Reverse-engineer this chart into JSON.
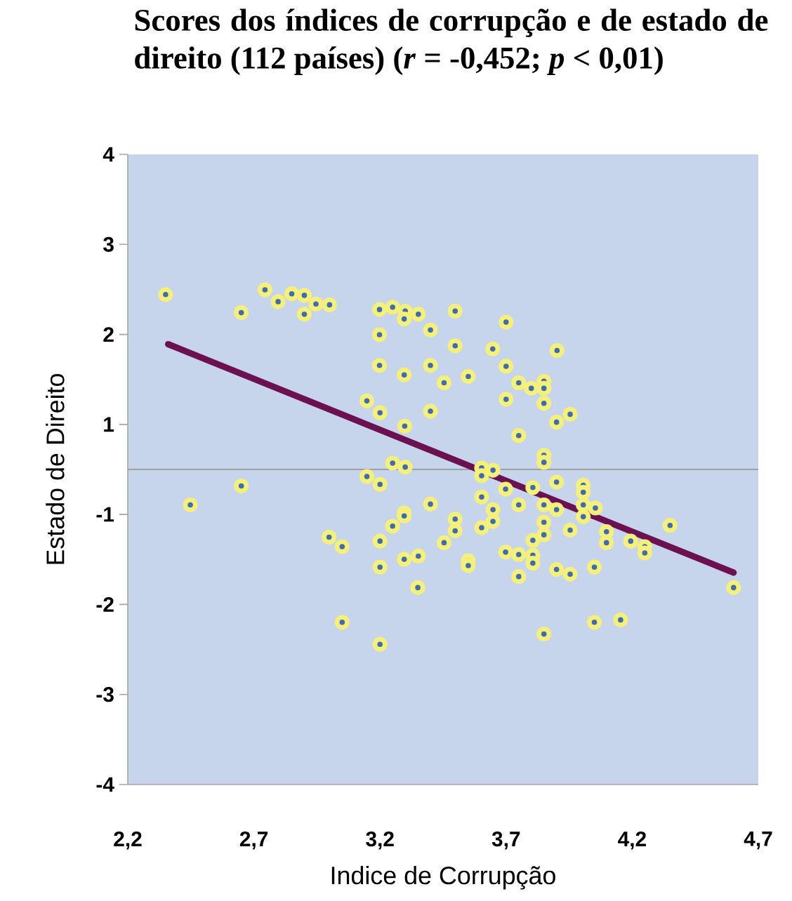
{
  "chart_data": {
    "type": "scatter",
    "title": "Scores dos índices de corrupção e de estado de direito (112 países) (*r* = -0,452; *p* < 0,01)",
    "xlabel": "Indice de Corrupção",
    "ylabel": "Estado de Direito",
    "xlim": [
      2.2,
      4.7
    ],
    "xticks": [
      {
        "value": 2.2,
        "label": "2,2"
      },
      {
        "value": 2.7,
        "label": "2,7"
      },
      {
        "value": 3.2,
        "label": "3,2"
      },
      {
        "value": 3.7,
        "label": "3,7"
      },
      {
        "value": 4.2,
        "label": "4,2"
      },
      {
        "value": 4.7,
        "label": "4,7"
      }
    ],
    "ylim": [
      -4,
      4
    ],
    "yticks": [
      {
        "value": 4,
        "label": "4"
      },
      {
        "value": 2.857,
        "label": "3"
      },
      {
        "value": 1.714,
        "label": "2"
      },
      {
        "value": 0.571,
        "label": "1"
      },
      {
        "value": -0.571,
        "label": "-1"
      },
      {
        "value": -1.714,
        "label": "-2"
      },
      {
        "value": -2.857,
        "label": "-3"
      },
      {
        "value": -4,
        "label": "-4"
      }
    ],
    "marker": "circle",
    "ref_lines": [
      {
        "axis": "y",
        "value": 0,
        "color": "#a0a0a0"
      }
    ],
    "series": [
      {
        "color": "#3d6db0",
        "x": [
          2.35,
          2.65,
          2.744,
          2.796,
          2.85,
          2.9,
          2.946,
          3.0,
          2.9,
          2.448,
          2.65,
          2.998,
          3.05,
          3.05,
          3.198,
          3.25,
          3.3,
          3.296,
          3.352,
          3.498,
          3.198,
          3.4,
          3.498,
          3.647,
          3.198,
          3.296,
          3.4,
          3.454,
          3.55,
          3.148,
          3.2,
          3.4,
          3.298,
          3.25,
          3.3,
          3.148,
          3.2,
          3.603,
          3.603,
          3.603,
          3.4,
          3.296,
          3.296,
          3.25,
          3.498,
          3.498,
          3.603,
          3.648,
          3.648,
          3.2,
          3.454,
          3.296,
          3.352,
          3.55,
          3.55,
          3.2,
          3.35,
          3.2,
          3.7,
          3.902,
          3.7,
          3.75,
          3.8,
          3.85,
          3.85,
          3.85,
          3.954,
          3.9,
          3.7,
          3.75,
          3.85,
          3.85,
          3.648,
          3.9,
          4.006,
          4.006,
          3.806,
          3.698,
          3.75,
          3.85,
          3.9,
          4.006,
          4.054,
          4.006,
          3.85,
          3.85,
          3.806,
          3.954,
          4.098,
          4.098,
          4.194,
          4.25,
          4.25,
          4.35,
          3.698,
          3.75,
          3.806,
          3.806,
          3.75,
          3.9,
          3.954,
          4.05,
          3.85,
          4.05,
          4.154,
          4.602
        ],
        "values": [
          2.22,
          1.99,
          2.28,
          2.13,
          2.23,
          2.21,
          2.1,
          2.09,
          1.97,
          -0.45,
          -0.21,
          -0.86,
          -0.98,
          -1.94,
          2.03,
          2.06,
          2.01,
          1.91,
          1.97,
          2.01,
          1.71,
          1.77,
          1.57,
          1.53,
          1.32,
          1.2,
          1.32,
          1.1,
          1.18,
          0.87,
          0.72,
          0.74,
          0.55,
          0.08,
          0.03,
          -0.09,
          -0.19,
          0.02,
          -0.08,
          -0.35,
          -0.44,
          -0.55,
          -0.59,
          -0.72,
          -0.63,
          -0.78,
          -0.74,
          -0.51,
          -0.66,
          -0.91,
          -0.93,
          -1.14,
          -1.1,
          -1.16,
          -1.22,
          -1.24,
          -1.5,
          -2.22,
          1.87,
          1.51,
          1.31,
          1.1,
          1.03,
          1.12,
          1.03,
          0.84,
          0.7,
          0.6,
          0.89,
          0.43,
          0.18,
          0.09,
          -0.01,
          -0.16,
          -0.2,
          -0.29,
          -0.23,
          -0.25,
          -0.45,
          -0.45,
          -0.51,
          -0.45,
          -0.49,
          -0.6,
          -0.67,
          -0.83,
          -0.9,
          -0.77,
          -0.79,
          -0.93,
          -0.91,
          -0.98,
          -1.06,
          -0.71,
          -1.05,
          -1.08,
          -1.09,
          -1.19,
          -1.36,
          -1.27,
          -1.33,
          -1.24,
          -2.09,
          -1.94,
          -1.91,
          -1.5
        ]
      },
      {
        "type": "line",
        "marker": "none",
        "color": "#6b1050",
        "x": [
          2.36,
          4.602
        ],
        "values": [
          1.59,
          -1.31
        ]
      }
    ]
  }
}
